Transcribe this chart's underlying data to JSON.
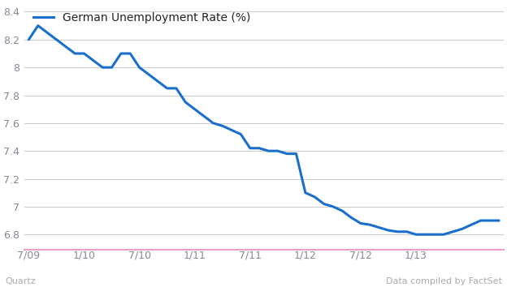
{
  "title": "German Unemployment Rate (%)",
  "line_color": "#1a6fcc",
  "line_width": 2.2,
  "background_color": "#ffffff",
  "plot_bg_color": "#ffffff",
  "grid_color": "#cccccc",
  "ylim": [
    6.72,
    8.46
  ],
  "yticks": [
    6.8,
    7.0,
    7.2,
    7.4,
    7.6,
    7.8,
    8.0,
    8.2,
    8.4
  ],
  "footer_left": "Quartz",
  "footer_right": "Data compiled by FactSet",
  "footer_color": "#aaaaaa",
  "accent_line_color": "#e8a0c8",
  "x_labels": [
    "7/09",
    "1/10",
    "7/10",
    "1/11",
    "7/11",
    "1/12",
    "7/12",
    "1/13"
  ],
  "x_tick_indices": [
    0,
    6,
    12,
    18,
    24,
    30,
    36,
    42
  ],
  "tick_color": "#888899",
  "values": [
    8.2,
    8.3,
    8.25,
    8.2,
    8.15,
    8.1,
    8.1,
    8.05,
    8.0,
    8.0,
    8.1,
    8.1,
    8.0,
    7.95,
    7.9,
    7.85,
    7.85,
    7.75,
    7.7,
    7.65,
    7.6,
    7.58,
    7.55,
    7.52,
    7.42,
    7.42,
    7.4,
    7.4,
    7.38,
    7.38,
    7.1,
    7.07,
    7.02,
    7.0,
    6.97,
    6.92,
    6.88,
    6.87,
    6.85,
    6.83,
    6.82,
    6.82,
    6.8,
    6.8,
    6.8,
    6.8,
    6.82,
    6.84,
    6.87,
    6.9,
    6.9,
    6.9
  ]
}
